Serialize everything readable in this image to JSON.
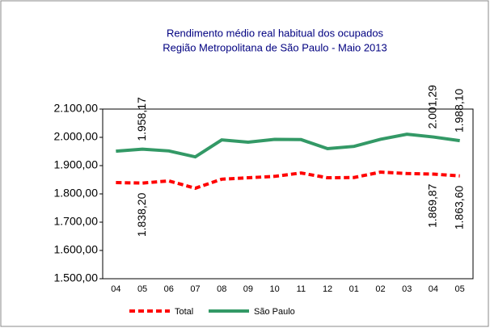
{
  "chart_data": {
    "type": "line",
    "title": "Rendimento médio real habitual dos ocupados",
    "subtitle": "Região Metropolitana de São Paulo - Maio 2013",
    "categories": [
      "04",
      "05",
      "06",
      "07",
      "08",
      "09",
      "10",
      "11",
      "12",
      "01",
      "02",
      "03",
      "04",
      "05"
    ],
    "series": [
      {
        "name": "Total",
        "color": "#ff0000",
        "dashed": true,
        "values": [
          1840,
          1838.2,
          1846,
          1820,
          1852,
          1857,
          1862,
          1874,
          1857,
          1858,
          1877,
          1872,
          1869.87,
          1863.6
        ],
        "value_labels": [
          null,
          "1.838,20",
          null,
          null,
          null,
          null,
          null,
          null,
          null,
          null,
          null,
          null,
          "1.869,87",
          "1.863,60"
        ]
      },
      {
        "name": "São Paulo",
        "color": "#339966",
        "dashed": false,
        "values": [
          1951,
          1958.17,
          1952,
          1931,
          1991,
          1983,
          1993,
          1992,
          1960,
          1968,
          1993,
          2011,
          2001.29,
          1988.1
        ],
        "value_labels": [
          null,
          "1.958,17",
          null,
          null,
          null,
          null,
          null,
          null,
          null,
          null,
          null,
          null,
          "2.001,29",
          "1.988,10"
        ]
      }
    ],
    "ylim": [
      1500,
      2100
    ],
    "yticks": [
      {
        "value": 1500,
        "label": "1.500,00"
      },
      {
        "value": 1600,
        "label": "1.600,00"
      },
      {
        "value": 1700,
        "label": "1.700,00"
      },
      {
        "value": 1800,
        "label": "1.800,00"
      },
      {
        "value": 1900,
        "label": "1.900,00"
      },
      {
        "value": 2000,
        "label": "2.000,00"
      },
      {
        "value": 2100,
        "label": "2.100,00"
      }
    ],
    "legend": "bottom"
  }
}
